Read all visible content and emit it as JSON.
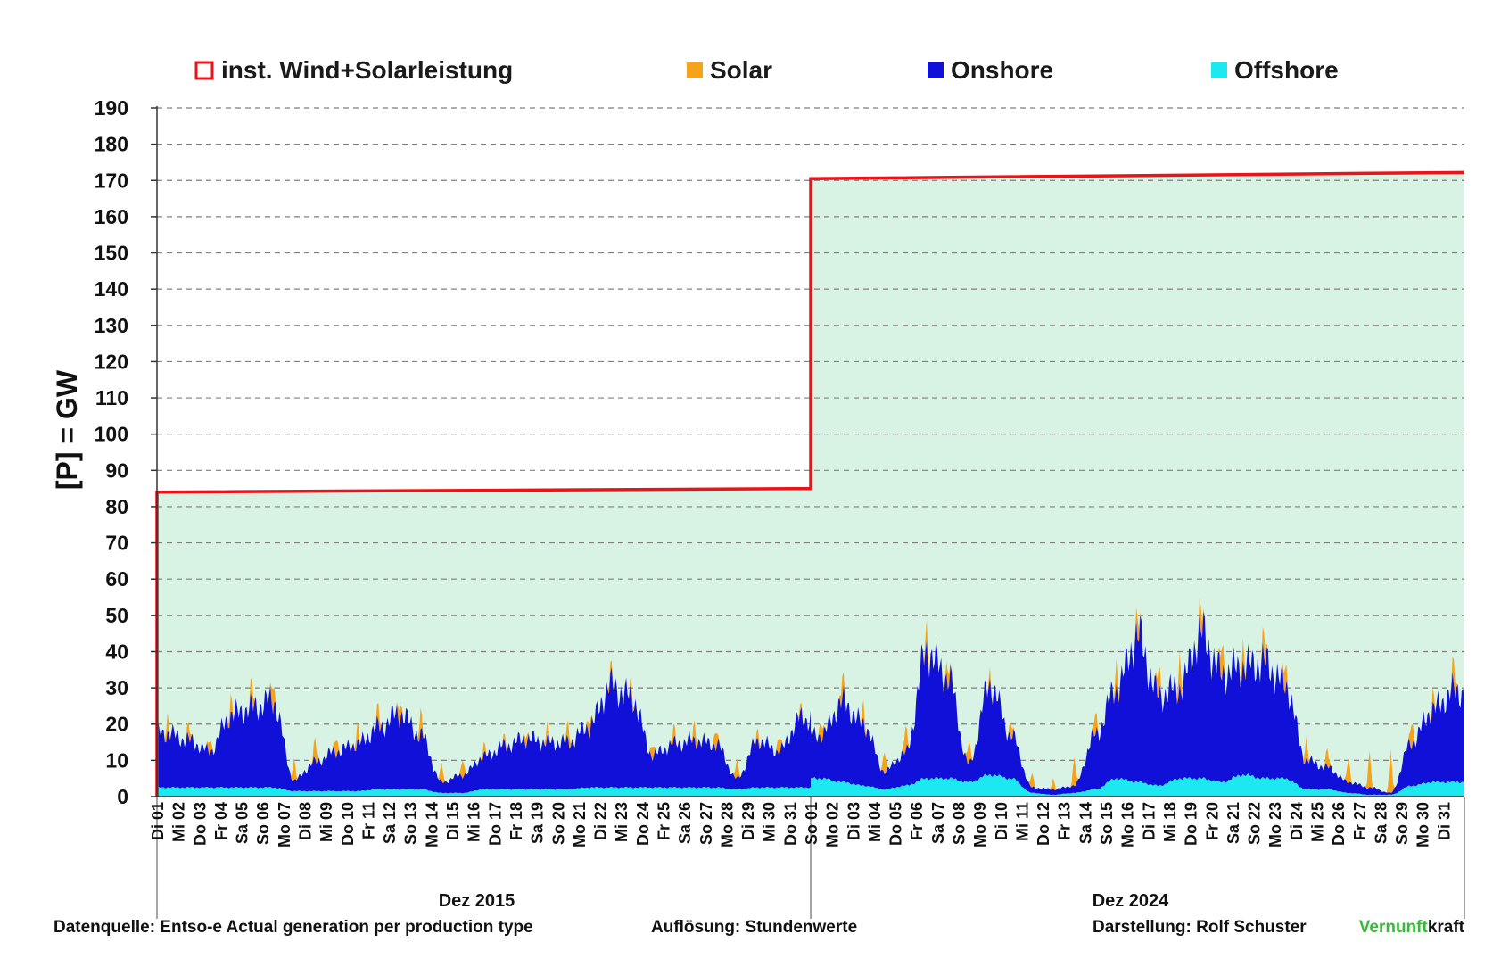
{
  "legend": {
    "capacity_label": "inst.  Wind+Solarleistung",
    "solar_label": "Solar",
    "onshore_label": "Onshore",
    "offshore_label": "Offshore"
  },
  "colors": {
    "capacity": "#e8141a",
    "solar": "#f5a31a",
    "onshore": "#1010d8",
    "offshore": "#1de8f0",
    "capacity_fill": "#d8f2e3",
    "grid": "#7f7f7f",
    "brand_green": "#3cb83c"
  },
  "footer": {
    "source": "Datenquelle: Entso-e  Actual generation per production type",
    "resolution": "Auflösung: Stundenwerte",
    "author": "Darstellung:  Rolf Schuster",
    "brand_part1": "Vernunft",
    "brand_part2": "kraft"
  },
  "chart_data": {
    "type": "area",
    "ylabel": "[P] = GW",
    "ylim": [
      0,
      190
    ],
    "yticks": [
      0,
      10,
      20,
      30,
      40,
      50,
      60,
      70,
      80,
      90,
      100,
      110,
      120,
      130,
      140,
      150,
      160,
      170,
      180,
      190
    ],
    "grid": true,
    "legend_position": "top",
    "groups": [
      {
        "label": "Dez 2015",
        "days": [
          "Di 01",
          "Mi 02",
          "Do 03",
          "Fr 04",
          "Sa 05",
          "So 06",
          "Mo 07",
          "Di 08",
          "Mi 09",
          "Do 10",
          "Fr 11",
          "Sa 12",
          "So 13",
          "Mo 14",
          "Di 15",
          "Mi 16",
          "Do 17",
          "Fr 18",
          "Sa 19",
          "So 20",
          "Mo 21",
          "Di 22",
          "Mi 23",
          "Do 24",
          "Fr 25",
          "Sa 26",
          "So 27",
          "Mo 28",
          "Di 29",
          "Mi 30",
          "Do 31"
        ],
        "installed_capacity_gw": [
          84,
          85
        ],
        "offshore_gw": [
          2.5,
          2.5,
          2.5,
          2.5,
          2.5,
          2.5,
          1.5,
          1.5,
          1.5,
          1.5,
          2,
          2,
          2,
          1,
          1,
          2,
          2,
          2,
          2,
          2,
          2.5,
          2.5,
          2.5,
          2.5,
          2.5,
          2.5,
          2.5,
          2,
          2.5,
          2.5,
          2.5
        ],
        "onshore_gw": [
          15,
          13,
          10,
          20,
          22,
          24,
          3,
          8,
          11,
          13,
          17,
          21,
          15,
          3,
          5,
          9,
          12,
          14,
          13,
          13,
          17,
          28,
          25,
          9,
          12,
          13,
          12,
          3,
          13,
          10,
          19
        ],
        "solar_peak_gw": [
          5,
          4,
          4,
          5,
          6,
          7,
          6,
          6,
          5,
          5,
          5,
          5,
          6,
          5,
          5,
          3,
          2,
          3,
          4,
          5,
          4,
          3,
          3,
          4,
          4,
          5,
          5,
          5,
          3,
          5,
          2
        ]
      },
      {
        "label": "Dez 2024",
        "days": [
          "So 01",
          "Mo 02",
          "Di 03",
          "Mi 04",
          "Do 05",
          "Fr 06",
          "Sa 07",
          "So 08",
          "Mo 09",
          "Di 10",
          "Mi 11",
          "Do 12",
          "Fr 13",
          "Sa 14",
          "So 15",
          "Mo 16",
          "Di 17",
          "Mi 18",
          "Do 19",
          "Fr 20",
          "Sa 21",
          "So 22",
          "Mo 23",
          "Di 24",
          "Mi 25",
          "Do 26",
          "Fr 27",
          "Sa 28",
          "So 29",
          "Mo 30",
          "Di 31"
        ],
        "installed_capacity_gw": [
          170.5,
          172.2
        ],
        "offshore_gw": [
          5,
          4,
          3,
          2,
          3,
          5,
          5,
          4,
          6,
          5,
          1,
          0.5,
          1,
          2,
          5,
          4,
          3,
          5,
          5,
          4,
          6,
          5,
          5,
          2,
          2,
          1,
          0.5,
          0.5,
          3,
          4,
          4
        ],
        "onshore_gw": [
          12,
          22,
          17,
          5,
          9,
          35,
          28,
          5,
          25,
          12,
          1.5,
          1.5,
          2,
          15,
          25,
          40,
          25,
          25,
          40,
          30,
          30,
          32,
          26,
          8,
          6,
          3,
          2,
          0.5,
          12,
          20,
          25
        ],
        "solar_peak_gw": [
          5,
          6,
          5,
          6,
          7,
          6,
          5,
          6,
          3,
          4,
          4,
          3,
          8,
          6,
          7,
          6,
          8,
          9,
          7,
          9,
          6,
          7,
          7,
          6,
          5,
          7,
          10,
          12,
          7,
          4,
          7
        ]
      }
    ]
  }
}
